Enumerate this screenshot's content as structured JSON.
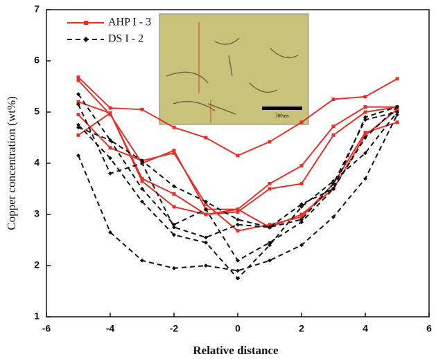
{
  "chart_data": {
    "type": "line",
    "x_label": "Relative distance",
    "y_label": "Copper concentration (wt%)",
    "inset_scale_label": "300um",
    "x": [
      -5,
      -4,
      -3,
      -2,
      -1,
      0,
      1,
      2,
      3,
      4,
      5
    ],
    "xlim": [
      -6,
      6
    ],
    "xticks": [
      -6,
      -4,
      -2,
      0,
      2,
      4,
      6
    ],
    "ylim": [
      1,
      7
    ],
    "yticks": [
      1,
      2,
      3,
      4,
      5,
      6,
      7
    ],
    "legend": "top-left",
    "series": [
      {
        "name": "AHP I - 3",
        "color": "#e8302a",
        "dashed": false,
        "lines": [
          [
            5.68,
            5.08,
            5.05,
            4.7,
            4.5,
            4.15,
            4.42,
            4.8,
            5.25,
            5.3,
            5.65
          ],
          [
            5.62,
            4.95,
            4.0,
            4.25,
            3.1,
            3.1,
            3.6,
            3.95,
            4.72,
            5.1,
            5.1
          ],
          [
            5.2,
            4.98,
            3.7,
            3.4,
            3.0,
            3.05,
            3.5,
            3.6,
            4.55,
            5.0,
            5.1
          ],
          [
            4.95,
            4.3,
            4.05,
            4.2,
            3.2,
            2.68,
            2.8,
            2.95,
            3.6,
            4.6,
            4.8
          ],
          [
            4.55,
            4.98,
            3.65,
            3.15,
            3.0,
            3.1,
            2.75,
            3.0,
            3.5,
            4.55,
            5.05
          ]
        ]
      },
      {
        "name": "DS I - 2",
        "color": "#111111",
        "dashed": true,
        "lines": [
          [
            5.35,
            4.45,
            4.05,
            3.55,
            3.25,
            2.9,
            2.75,
            3.2,
            3.5,
            4.9,
            5.1
          ],
          [
            5.15,
            3.8,
            4.0,
            2.75,
            2.55,
            2.8,
            2.75,
            2.9,
            3.6,
            4.85,
            5.0
          ],
          [
            4.75,
            4.1,
            3.25,
            2.6,
            2.45,
            1.75,
            2.4,
            3.15,
            3.65,
            4.2,
            5.0
          ],
          [
            4.7,
            4.45,
            3.5,
            2.8,
            3.1,
            2.1,
            2.45,
            2.85,
            3.5,
            4.5,
            5.1
          ],
          [
            4.15,
            2.65,
            2.1,
            1.95,
            2.0,
            1.9,
            2.1,
            2.4,
            2.95,
            3.7,
            4.95
          ]
        ]
      }
    ]
  }
}
